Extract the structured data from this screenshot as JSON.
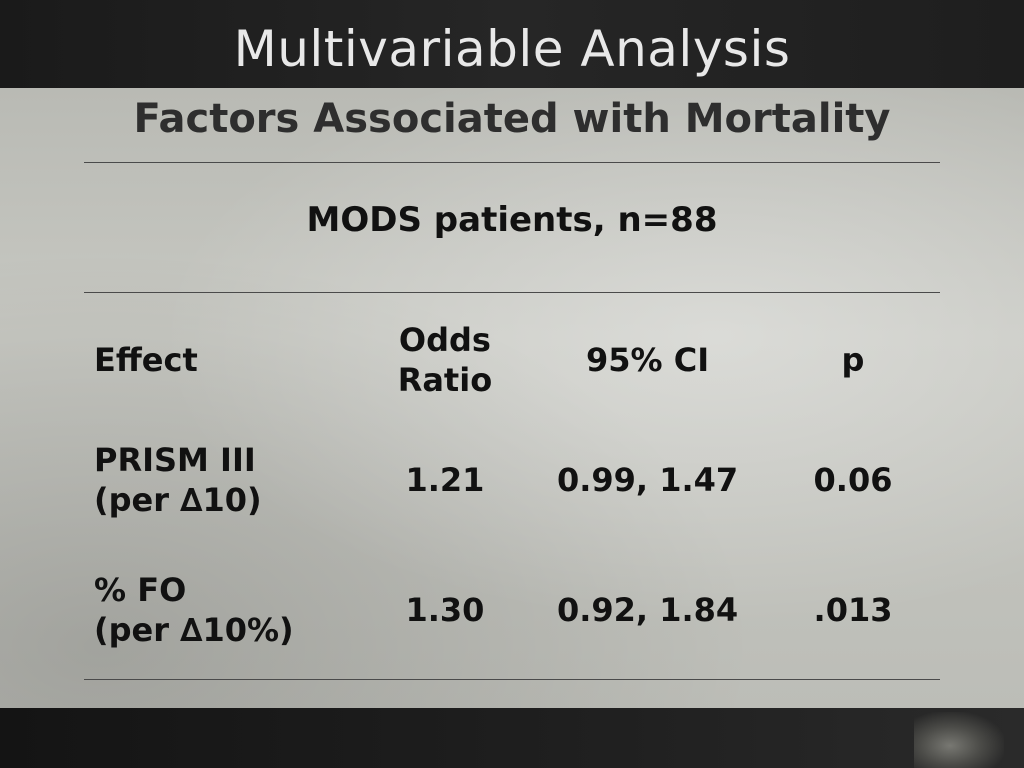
{
  "slide": {
    "title": "Multivariable Analysis",
    "subtitle": "Factors Associated with Mortality",
    "caption": "MODS patients, n=88"
  },
  "table": {
    "headers": {
      "effect": "Effect",
      "odds_ratio_line1": "Odds",
      "odds_ratio_line2": "Ratio",
      "ci": "95% CI",
      "p": "p"
    },
    "rows": [
      {
        "effect_line1": "PRISM III",
        "effect_line2": "(per ∆10)",
        "odds_ratio": "1.21",
        "ci": "0.99, 1.47",
        "p": "0.06"
      },
      {
        "effect_line1": "% FO",
        "effect_line2": "(per ∆10%)",
        "odds_ratio": "1.30",
        "ci": "0.92, 1.84",
        "p": ".013"
      }
    ]
  }
}
